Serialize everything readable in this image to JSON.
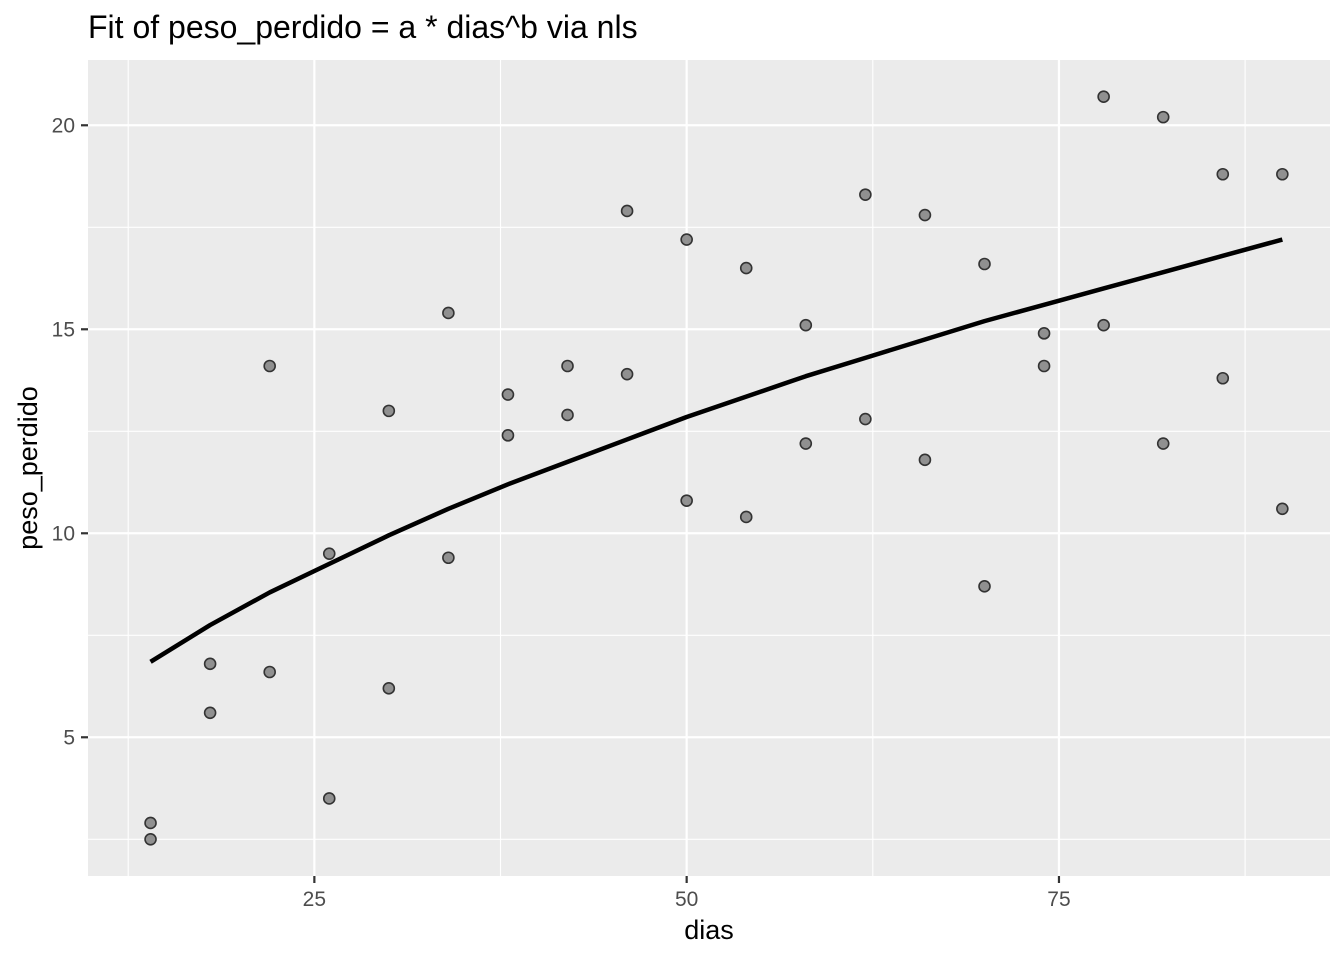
{
  "chart_data": {
    "type": "scatter",
    "title": "Fit of peso_perdido = a * dias^b via nls",
    "xlabel": "dias",
    "ylabel": "peso_perdido",
    "xlim": [
      9.8,
      93.2
    ],
    "ylim": [
      1.6,
      21.6
    ],
    "x_ticks": [
      25,
      50,
      75
    ],
    "x_tick_labels": [
      "25",
      "50",
      "75"
    ],
    "x_minor": [
      12.5,
      37.5,
      62.5,
      87.5
    ],
    "y_ticks": [
      5,
      10,
      15,
      20
    ],
    "y_tick_labels": [
      "5",
      "10",
      "15",
      "20"
    ],
    "y_minor": [
      2.5,
      7.5,
      12.5,
      17.5
    ],
    "grid": true,
    "series": [
      {
        "kind": "points",
        "x": [
          14,
          14,
          18,
          18,
          22,
          22,
          26,
          26,
          30,
          30,
          34,
          34,
          38,
          38,
          42,
          42,
          46,
          46,
          50,
          50,
          54,
          54,
          58,
          58,
          62,
          62,
          66,
          66,
          70,
          70,
          74,
          74,
          78,
          78,
          82,
          82,
          86,
          86,
          90,
          90
        ],
        "y": [
          2.9,
          2.5,
          6.8,
          5.6,
          14.1,
          6.6,
          9.5,
          3.5,
          13.0,
          6.2,
          15.4,
          9.4,
          13.4,
          12.4,
          14.1,
          12.9,
          17.9,
          13.9,
          17.2,
          10.8,
          16.5,
          10.4,
          15.1,
          12.2,
          18.3,
          12.8,
          17.8,
          11.8,
          16.6,
          8.7,
          14.9,
          14.1,
          20.7,
          15.1,
          20.2,
          12.2,
          18.8,
          13.8,
          18.8,
          10.6
        ]
      },
      {
        "kind": "line",
        "x": [
          14,
          18,
          22,
          26,
          30,
          34,
          38,
          42,
          46,
          50,
          54,
          58,
          62,
          66,
          70,
          74,
          78,
          82,
          86,
          90
        ],
        "y": [
          6.85,
          7.75,
          8.55,
          9.25,
          9.95,
          10.6,
          11.2,
          11.75,
          12.3,
          12.85,
          13.35,
          13.85,
          14.3,
          14.75,
          15.2,
          15.6,
          16.0,
          16.4,
          16.8,
          17.2
        ]
      }
    ]
  }
}
